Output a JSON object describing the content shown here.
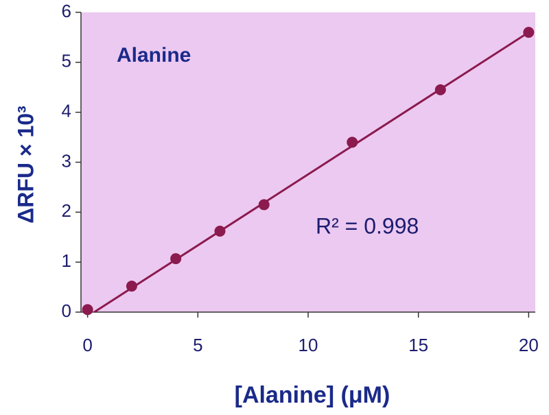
{
  "chart_data": {
    "type": "scatter",
    "title": "Alanine",
    "annotation": "R² = 0.998",
    "x_label": "[Alanine] (μM)",
    "y_label": "ΔRFU × 10³",
    "x": [
      0,
      2,
      4,
      6,
      8,
      12,
      16,
      20
    ],
    "values": [
      0.05,
      0.52,
      1.07,
      1.62,
      2.15,
      3.4,
      4.45,
      5.6
    ],
    "color": "#8b1a4e",
    "fit": {
      "x": [
        0.3,
        20
      ],
      "values": [
        0,
        5.6
      ]
    },
    "xlim": [
      -0.3,
      20.3
    ],
    "ylim": [
      0,
      6
    ],
    "xticks": [
      0,
      5,
      10,
      15,
      20
    ],
    "yticks": [
      0,
      1,
      2,
      3,
      4,
      5,
      6
    ],
    "plot_background": "#ecc9f1"
  }
}
